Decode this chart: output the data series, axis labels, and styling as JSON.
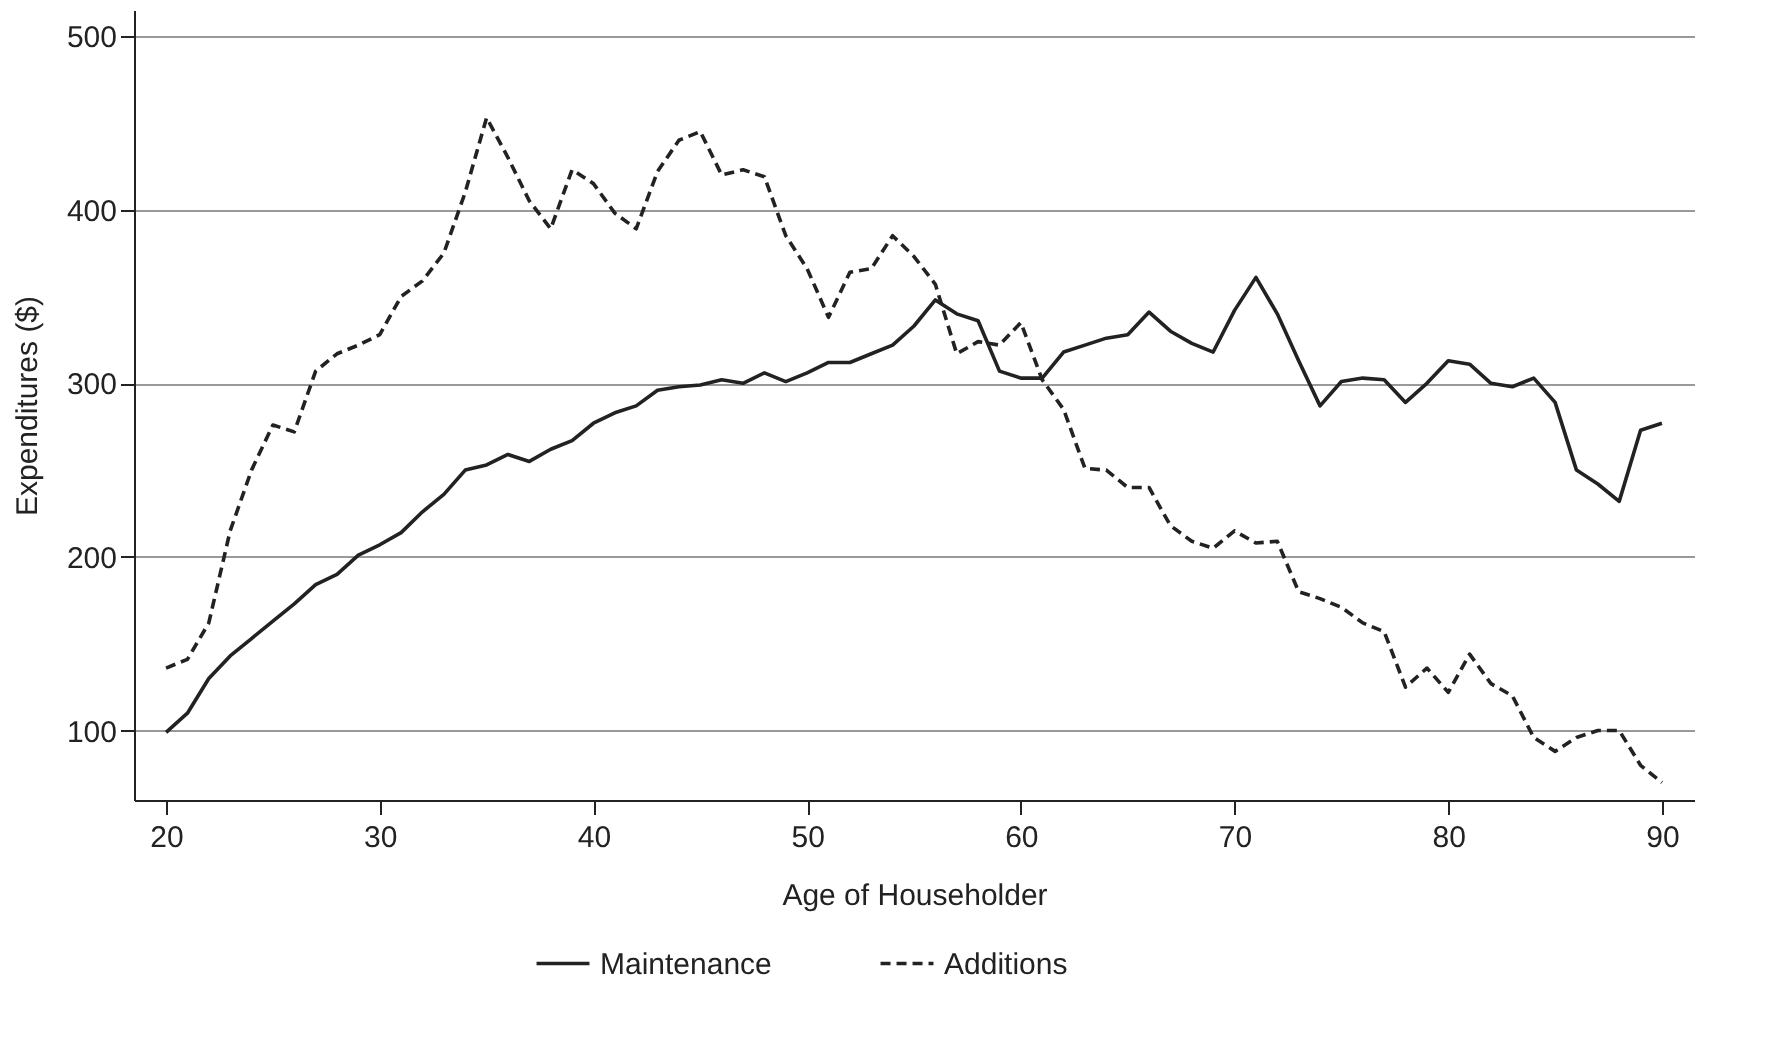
{
  "chart_data": {
    "type": "line",
    "xlabel": "Age of Householder",
    "ylabel": "Expenditures ($)",
    "x": [
      20,
      21,
      22,
      23,
      24,
      25,
      26,
      27,
      28,
      29,
      30,
      31,
      32,
      33,
      34,
      35,
      36,
      37,
      38,
      39,
      40,
      41,
      42,
      43,
      44,
      45,
      46,
      47,
      48,
      49,
      50,
      51,
      52,
      53,
      54,
      55,
      56,
      57,
      58,
      59,
      60,
      61,
      62,
      63,
      64,
      65,
      66,
      67,
      68,
      69,
      70,
      71,
      72,
      73,
      74,
      75,
      76,
      77,
      78,
      79,
      80,
      81,
      82,
      83,
      84,
      85,
      86,
      87,
      88,
      89,
      90
    ],
    "series": [
      {
        "name": "Maintenance",
        "color": "#222222",
        "line_style": "solid",
        "values": [
          99,
          110,
          130,
          143,
          153,
          163,
          173,
          184,
          190,
          201,
          207,
          214,
          226,
          236,
          250,
          253,
          259,
          255,
          262,
          267,
          277,
          283,
          287,
          296,
          298,
          299,
          302,
          300,
          306,
          301,
          306,
          312,
          312,
          317,
          322,
          333,
          348,
          340,
          336,
          307,
          303,
          303,
          318,
          322,
          326,
          328,
          341,
          330,
          323,
          318,
          342,
          361,
          340,
          313,
          287,
          301,
          303,
          302,
          289,
          300,
          313,
          311,
          300,
          298,
          303,
          289,
          250,
          242,
          232,
          273,
          277
        ]
      },
      {
        "name": "Additions",
        "color": "#222222",
        "line_style": "dashed",
        "values": [
          136,
          141,
          162,
          215,
          250,
          276,
          272,
          307,
          317,
          322,
          328,
          350,
          359,
          375,
          410,
          453,
          430,
          405,
          389,
          423,
          415,
          398,
          389,
          422,
          440,
          445,
          420,
          423,
          419,
          385,
          366,
          338,
          364,
          366,
          385,
          373,
          357,
          317,
          324,
          322,
          335,
          302,
          285,
          251,
          250,
          240,
          240,
          218,
          209,
          205,
          215,
          208,
          209,
          180,
          176,
          171,
          162,
          157,
          125,
          136,
          122,
          144,
          127,
          120,
          96,
          88,
          96,
          100,
          100,
          80,
          70
        ]
      }
    ],
    "xlim": [
      18.5,
      91.5
    ],
    "ylim": [
      60,
      515
    ],
    "xticks": [
      20,
      30,
      40,
      50,
      60,
      70,
      80,
      90
    ],
    "yticks": [
      100,
      200,
      300,
      400,
      500
    ],
    "grid": "y",
    "legend": "bottom",
    "marker": "none"
  }
}
